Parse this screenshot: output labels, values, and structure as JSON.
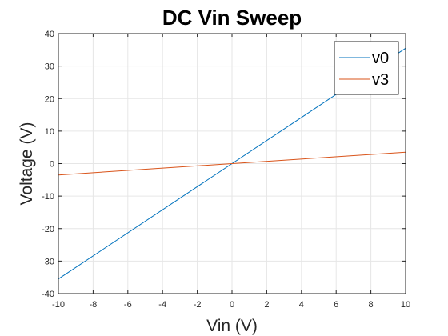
{
  "chart_data": {
    "type": "line",
    "title": "DC Vin Sweep",
    "xlabel": "Vin (V)",
    "ylabel": "Voltage (V)",
    "xlim": [
      -10,
      10
    ],
    "ylim": [
      -40,
      40
    ],
    "xticks": [
      -10,
      -8,
      -6,
      -4,
      -2,
      0,
      2,
      4,
      6,
      8,
      10
    ],
    "yticks": [
      -40,
      -30,
      -20,
      -10,
      0,
      10,
      20,
      30,
      40
    ],
    "grid": true,
    "legend_position": "top-right",
    "series": [
      {
        "name": "v0",
        "color": "#0072BD",
        "x": [
          -10,
          10
        ],
        "y": [
          -35.5,
          35.5
        ]
      },
      {
        "name": "v3",
        "color": "#D95319",
        "x": [
          -10,
          10
        ],
        "y": [
          -3.5,
          3.5
        ]
      }
    ]
  }
}
